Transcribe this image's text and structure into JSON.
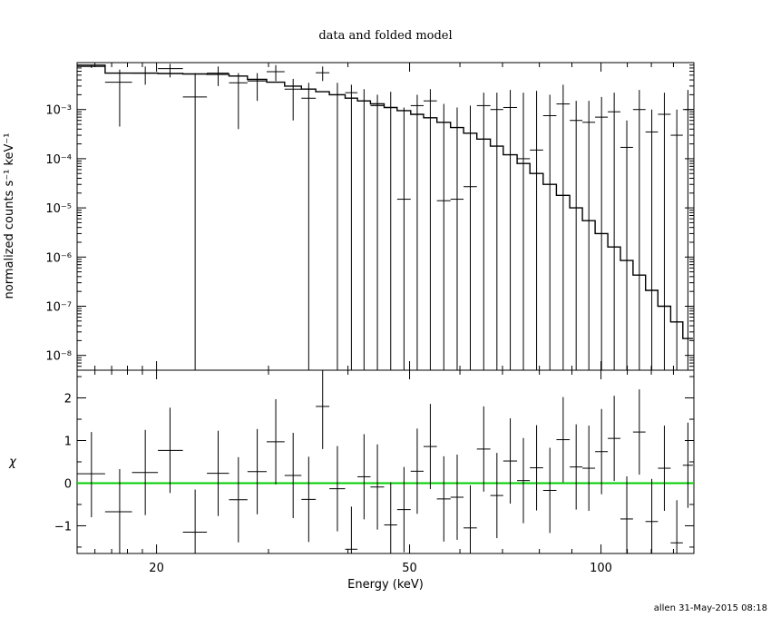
{
  "chart_data": {
    "type": "scatter",
    "title": "data and folded model",
    "xlabel": "Energy (keV)",
    "xscale": "log",
    "xlim": [
      15.0,
      140.0
    ],
    "x_ticks": [
      20,
      50,
      100
    ],
    "grid": false,
    "footer": "allen 31-May-2015 08:18",
    "top_panel": {
      "ylabel": "normalized counts s⁻¹ keV⁻¹",
      "yscale": "log",
      "ylim": [
        5e-09,
        0.009
      ],
      "y_ticks": [
        {
          "value": 0.001,
          "label": "10⁻³"
        },
        {
          "value": 0.0001,
          "label": "10⁻⁴"
        },
        {
          "value": 1e-05,
          "label": "10⁻⁵"
        },
        {
          "value": 1e-06,
          "label": "10⁻⁶"
        },
        {
          "value": 1e-07,
          "label": "10⁻⁷"
        },
        {
          "value": 1e-08,
          "label": "10⁻⁸"
        }
      ],
      "data": [
        {
          "x": 15.8,
          "xlo": 15.0,
          "xhi": 16.6,
          "y": 0.0075,
          "ylo": 0.007,
          "yhi": 0.008
        },
        {
          "x": 17.5,
          "xlo": 16.6,
          "xhi": 18.3,
          "y": 0.0036,
          "ylo": 0.00045,
          "yhi": 0.0065
        },
        {
          "x": 19.2,
          "xlo": 18.3,
          "xhi": 20.1,
          "y": 0.0055,
          "ylo": 0.0032,
          "yhi": 0.0075
        },
        {
          "x": 21.0,
          "xlo": 20.1,
          "xhi": 22.0,
          "y": 0.0068,
          "ylo": 0.0045,
          "yhi": 0.0085
        },
        {
          "x": 23.0,
          "xlo": 22.0,
          "xhi": 24.0,
          "y": 0.0018,
          "ylo": 5e-09,
          "yhi": 0.0055
        },
        {
          "x": 25.0,
          "xlo": 24.0,
          "xhi": 26.0,
          "y": 0.0055,
          "ylo": 0.003,
          "yhi": 0.0075
        },
        {
          "x": 26.9,
          "xlo": 26.0,
          "xhi": 27.8,
          "y": 0.0035,
          "ylo": 0.0004,
          "yhi": 0.0055
        },
        {
          "x": 28.8,
          "xlo": 27.8,
          "xhi": 29.8,
          "y": 0.0038,
          "ylo": 0.0015,
          "yhi": 0.0055
        },
        {
          "x": 30.8,
          "xlo": 29.8,
          "xhi": 31.8,
          "y": 0.0059,
          "ylo": 0.0038,
          "yhi": 0.008
        },
        {
          "x": 32.8,
          "xlo": 31.8,
          "xhi": 33.8,
          "y": 0.0026,
          "ylo": 0.0006,
          "yhi": 0.0042
        },
        {
          "x": 34.7,
          "xlo": 33.8,
          "xhi": 35.6,
          "y": 0.0017,
          "ylo": 5e-09,
          "yhi": 0.0035
        },
        {
          "x": 36.5,
          "xlo": 35.6,
          "xhi": 37.4,
          "y": 0.0056,
          "ylo": 0.0038,
          "yhi": 0.0075
        },
        {
          "x": 38.5,
          "xlo": 37.4,
          "xhi": 39.6,
          "y": 0.002,
          "ylo": 5e-09,
          "yhi": 0.0035
        },
        {
          "x": 40.5,
          "xlo": 39.6,
          "xhi": 41.4,
          "y": 0.0022,
          "ylo": 5e-09,
          "yhi": 0.0032
        },
        {
          "x": 42.4,
          "xlo": 41.4,
          "xhi": 43.4,
          "y": 0.0015,
          "ylo": 5e-09,
          "yhi": 0.0026
        },
        {
          "x": 44.5,
          "xlo": 43.4,
          "xhi": 45.6,
          "y": 0.0012,
          "ylo": 5e-09,
          "yhi": 0.002
        },
        {
          "x": 46.7,
          "xlo": 45.6,
          "xhi": 47.8,
          "y": 0.0011,
          "ylo": 5e-09,
          "yhi": 0.0023
        },
        {
          "x": 49.0,
          "xlo": 47.8,
          "xhi": 50.2,
          "y": 1.5e-05,
          "ylo": 5e-09,
          "yhi": 0.0011
        },
        {
          "x": 51.4,
          "xlo": 50.2,
          "xhi": 52.6,
          "y": 0.0012,
          "ylo": 5e-09,
          "yhi": 0.002
        },
        {
          "x": 53.9,
          "xlo": 52.6,
          "xhi": 55.2,
          "y": 0.0015,
          "ylo": 5e-09,
          "yhi": 0.0026
        },
        {
          "x": 56.6,
          "xlo": 55.2,
          "xhi": 58.0,
          "y": 1.4e-05,
          "ylo": 5e-09,
          "yhi": 0.0013
        },
        {
          "x": 59.4,
          "xlo": 58.0,
          "xhi": 60.8,
          "y": 1.5e-05,
          "ylo": 5e-09,
          "yhi": 0.0011
        },
        {
          "x": 62.3,
          "xlo": 60.8,
          "xhi": 63.8,
          "y": 2.7e-05,
          "ylo": 5e-09,
          "yhi": 0.0012
        },
        {
          "x": 65.4,
          "xlo": 63.8,
          "xhi": 67.0,
          "y": 0.0012,
          "ylo": 5e-09,
          "yhi": 0.0022
        },
        {
          "x": 68.6,
          "xlo": 67.0,
          "xhi": 70.2,
          "y": 0.001,
          "ylo": 5e-09,
          "yhi": 0.0022
        },
        {
          "x": 72.0,
          "xlo": 70.2,
          "xhi": 73.8,
          "y": 0.0011,
          "ylo": 5e-09,
          "yhi": 0.0025
        },
        {
          "x": 75.5,
          "xlo": 73.8,
          "xhi": 77.3,
          "y": 0.0001,
          "ylo": 5e-09,
          "yhi": 0.0022
        },
        {
          "x": 79.2,
          "xlo": 77.3,
          "xhi": 81.1,
          "y": 0.00015,
          "ylo": 5e-09,
          "yhi": 0.0024
        },
        {
          "x": 83.1,
          "xlo": 81.1,
          "xhi": 85.1,
          "y": 0.00075,
          "ylo": 5e-09,
          "yhi": 0.002
        },
        {
          "x": 87.2,
          "xlo": 85.1,
          "xhi": 89.3,
          "y": 0.0013,
          "ylo": 5e-09,
          "yhi": 0.0032
        },
        {
          "x": 91.4,
          "xlo": 89.3,
          "xhi": 93.5,
          "y": 0.0006,
          "ylo": 5e-09,
          "yhi": 0.0015
        },
        {
          "x": 95.7,
          "xlo": 93.5,
          "xhi": 97.9,
          "y": 0.00055,
          "ylo": 5e-09,
          "yhi": 0.0015
        },
        {
          "x": 100.2,
          "xlo": 97.9,
          "xhi": 102.5,
          "y": 0.0007,
          "ylo": 5e-09,
          "yhi": 0.0018
        },
        {
          "x": 104.9,
          "xlo": 102.5,
          "xhi": 107.3,
          "y": 0.0009,
          "ylo": 5e-09,
          "yhi": 0.0022
        },
        {
          "x": 109.8,
          "xlo": 107.3,
          "xhi": 112.3,
          "y": 0.00017,
          "ylo": 5e-09,
          "yhi": 0.0006
        },
        {
          "x": 114.9,
          "xlo": 112.3,
          "xhi": 117.5,
          "y": 0.001,
          "ylo": 5e-09,
          "yhi": 0.0025
        },
        {
          "x": 120.2,
          "xlo": 117.5,
          "xhi": 122.9,
          "y": 0.00035,
          "ylo": 5e-09,
          "yhi": 0.001
        },
        {
          "x": 125.8,
          "xlo": 122.9,
          "xhi": 128.7,
          "y": 0.0008,
          "ylo": 5e-09,
          "yhi": 0.0022
        },
        {
          "x": 131.6,
          "xlo": 128.7,
          "xhi": 134.5,
          "y": 0.0003,
          "ylo": 5e-09,
          "yhi": 0.001
        },
        {
          "x": 137.0,
          "xlo": 134.5,
          "xhi": 139.5,
          "y": 0.001,
          "ylo": 5e-09,
          "yhi": 0.0025
        }
      ],
      "model": [
        [
          15.0,
          0.008
        ],
        [
          16.6,
          0.0055
        ],
        [
          18.3,
          0.0055
        ],
        [
          20.1,
          0.0054
        ],
        [
          22.0,
          0.0053
        ],
        [
          24.0,
          0.0052
        ],
        [
          26.0,
          0.0048
        ],
        [
          27.8,
          0.0041
        ],
        [
          29.8,
          0.0036
        ],
        [
          31.8,
          0.003
        ],
        [
          33.8,
          0.0026
        ],
        [
          35.6,
          0.0023
        ],
        [
          37.4,
          0.002
        ],
        [
          39.6,
          0.0017
        ],
        [
          41.4,
          0.0015
        ],
        [
          43.4,
          0.0013
        ],
        [
          45.6,
          0.0011
        ],
        [
          47.8,
          0.00095
        ],
        [
          50.2,
          0.0008
        ],
        [
          52.6,
          0.00068
        ],
        [
          55.2,
          0.00055
        ],
        [
          58.0,
          0.00043
        ],
        [
          60.8,
          0.00033
        ],
        [
          63.8,
          0.00025
        ],
        [
          67.0,
          0.00018
        ],
        [
          70.2,
          0.00012
        ],
        [
          73.8,
          8e-05
        ],
        [
          77.3,
          5e-05
        ],
        [
          81.1,
          3e-05
        ],
        [
          85.1,
          1.8e-05
        ],
        [
          89.3,
          1e-05
        ],
        [
          93.5,
          5.5e-06
        ],
        [
          97.9,
          3e-06
        ],
        [
          102.5,
          1.6e-06
        ],
        [
          107.3,
          8.5e-07
        ],
        [
          112.3,
          4.3e-07
        ],
        [
          117.5,
          2.1e-07
        ],
        [
          122.9,
          1e-07
        ],
        [
          128.7,
          4.8e-08
        ],
        [
          134.5,
          2.2e-08
        ],
        [
          139.5,
          1e-08
        ]
      ]
    },
    "bottom_panel": {
      "ylabel": "χ",
      "yscale": "linear",
      "ylim": [
        -1.65,
        2.65
      ],
      "y_ticks": [
        {
          "value": 2,
          "label": "2"
        },
        {
          "value": 1,
          "label": "1"
        },
        {
          "value": 0,
          "label": "0"
        },
        {
          "value": -1,
          "label": "−1"
        }
      ],
      "zero_line_color": "#00cc00",
      "data": [
        {
          "x": 15.8,
          "xlo": 15.0,
          "xhi": 16.6,
          "y": 0.22,
          "ylo": -0.8,
          "yhi": 1.2
        },
        {
          "x": 17.5,
          "xlo": 16.6,
          "xhi": 18.3,
          "y": -0.67,
          "ylo": -1.65,
          "yhi": 0.33
        },
        {
          "x": 19.2,
          "xlo": 18.3,
          "xhi": 20.1,
          "y": 0.25,
          "ylo": -0.75,
          "yhi": 1.25
        },
        {
          "x": 21.0,
          "xlo": 20.1,
          "xhi": 22.0,
          "y": 0.77,
          "ylo": -0.23,
          "yhi": 1.77
        },
        {
          "x": 23.0,
          "xlo": 22.0,
          "xhi": 24.0,
          "y": -1.15,
          "ylo": -1.65,
          "yhi": -0.15
        },
        {
          "x": 25.0,
          "xlo": 24.0,
          "xhi": 26.0,
          "y": 0.23,
          "ylo": -0.77,
          "yhi": 1.23
        },
        {
          "x": 26.9,
          "xlo": 26.0,
          "xhi": 27.8,
          "y": -0.39,
          "ylo": -1.39,
          "yhi": 0.61
        },
        {
          "x": 28.8,
          "xlo": 27.8,
          "xhi": 29.8,
          "y": 0.27,
          "ylo": -0.73,
          "yhi": 1.27
        },
        {
          "x": 30.8,
          "xlo": 29.8,
          "xhi": 31.8,
          "y": 0.97,
          "ylo": -0.03,
          "yhi": 1.97
        },
        {
          "x": 32.8,
          "xlo": 31.8,
          "xhi": 33.8,
          "y": 0.18,
          "ylo": -0.82,
          "yhi": 1.18
        },
        {
          "x": 34.7,
          "xlo": 33.8,
          "xhi": 35.6,
          "y": -0.38,
          "ylo": -1.38,
          "yhi": 0.62
        },
        {
          "x": 36.5,
          "xlo": 35.6,
          "xhi": 37.4,
          "y": 1.8,
          "ylo": 0.8,
          "yhi": 2.65
        },
        {
          "x": 38.5,
          "xlo": 37.4,
          "xhi": 39.6,
          "y": -0.13,
          "ylo": -1.13,
          "yhi": 0.87
        },
        {
          "x": 40.5,
          "xlo": 39.6,
          "xhi": 41.4,
          "y": -1.55,
          "ylo": -1.65,
          "yhi": -0.55
        },
        {
          "x": 42.4,
          "xlo": 41.4,
          "xhi": 43.4,
          "y": 0.15,
          "ylo": -0.85,
          "yhi": 1.15
        },
        {
          "x": 44.5,
          "xlo": 43.4,
          "xhi": 45.6,
          "y": -0.09,
          "ylo": -1.09,
          "yhi": 0.91
        },
        {
          "x": 46.7,
          "xlo": 45.6,
          "xhi": 47.8,
          "y": -0.98,
          "ylo": -1.65,
          "yhi": 0.02
        },
        {
          "x": 49.0,
          "xlo": 47.8,
          "xhi": 50.2,
          "y": -0.62,
          "ylo": -1.62,
          "yhi": 0.38
        },
        {
          "x": 51.4,
          "xlo": 50.2,
          "xhi": 52.6,
          "y": 0.28,
          "ylo": -0.72,
          "yhi": 1.28
        },
        {
          "x": 53.9,
          "xlo": 52.6,
          "xhi": 55.2,
          "y": 0.86,
          "ylo": -0.14,
          "yhi": 1.86
        },
        {
          "x": 56.6,
          "xlo": 55.2,
          "xhi": 58.0,
          "y": -0.37,
          "ylo": -1.37,
          "yhi": 0.63
        },
        {
          "x": 59.4,
          "xlo": 58.0,
          "xhi": 60.8,
          "y": -0.33,
          "ylo": -1.33,
          "yhi": 0.67
        },
        {
          "x": 62.3,
          "xlo": 60.8,
          "xhi": 63.8,
          "y": -1.05,
          "ylo": -1.65,
          "yhi": -0.05
        },
        {
          "x": 65.4,
          "xlo": 63.8,
          "xhi": 67.0,
          "y": 0.8,
          "ylo": -0.2,
          "yhi": 1.8
        },
        {
          "x": 68.6,
          "xlo": 67.0,
          "xhi": 70.2,
          "y": -0.29,
          "ylo": -1.29,
          "yhi": 0.71
        },
        {
          "x": 72.0,
          "xlo": 70.2,
          "xhi": 73.8,
          "y": 0.52,
          "ylo": -0.48,
          "yhi": 1.52
        },
        {
          "x": 75.5,
          "xlo": 73.8,
          "xhi": 77.3,
          "y": 0.06,
          "ylo": -0.94,
          "yhi": 1.06
        },
        {
          "x": 79.2,
          "xlo": 77.3,
          "xhi": 81.1,
          "y": 0.36,
          "ylo": -0.64,
          "yhi": 1.36
        },
        {
          "x": 83.1,
          "xlo": 81.1,
          "xhi": 85.1,
          "y": -0.17,
          "ylo": -1.17,
          "yhi": 0.83
        },
        {
          "x": 87.2,
          "xlo": 85.1,
          "xhi": 89.3,
          "y": 1.02,
          "ylo": 0.02,
          "yhi": 2.02
        },
        {
          "x": 91.4,
          "xlo": 89.3,
          "xhi": 93.5,
          "y": 0.38,
          "ylo": -0.62,
          "yhi": 1.38
        },
        {
          "x": 95.7,
          "xlo": 93.5,
          "xhi": 97.9,
          "y": 0.35,
          "ylo": -0.65,
          "yhi": 1.35
        },
        {
          "x": 100.2,
          "xlo": 97.9,
          "xhi": 102.5,
          "y": 0.74,
          "ylo": -0.26,
          "yhi": 1.74
        },
        {
          "x": 104.9,
          "xlo": 102.5,
          "xhi": 107.3,
          "y": 1.05,
          "ylo": 0.05,
          "yhi": 2.05
        },
        {
          "x": 109.8,
          "xlo": 107.3,
          "xhi": 112.3,
          "y": -0.84,
          "ylo": -1.65,
          "yhi": 0.16
        },
        {
          "x": 114.9,
          "xlo": 112.3,
          "xhi": 117.5,
          "y": 1.2,
          "ylo": 0.2,
          "yhi": 2.2
        },
        {
          "x": 120.2,
          "xlo": 117.5,
          "xhi": 122.9,
          "y": -0.9,
          "ylo": -1.65,
          "yhi": 0.1
        },
        {
          "x": 125.8,
          "xlo": 122.9,
          "xhi": 128.7,
          "y": 0.35,
          "ylo": -0.65,
          "yhi": 1.35
        },
        {
          "x": 131.6,
          "xlo": 128.7,
          "xhi": 134.5,
          "y": -1.4,
          "ylo": -1.65,
          "yhi": -0.4
        },
        {
          "x": 137.0,
          "xlo": 134.5,
          "xhi": 139.5,
          "y": 0.42,
          "ylo": -0.58,
          "yhi": 1.42
        }
      ]
    }
  }
}
